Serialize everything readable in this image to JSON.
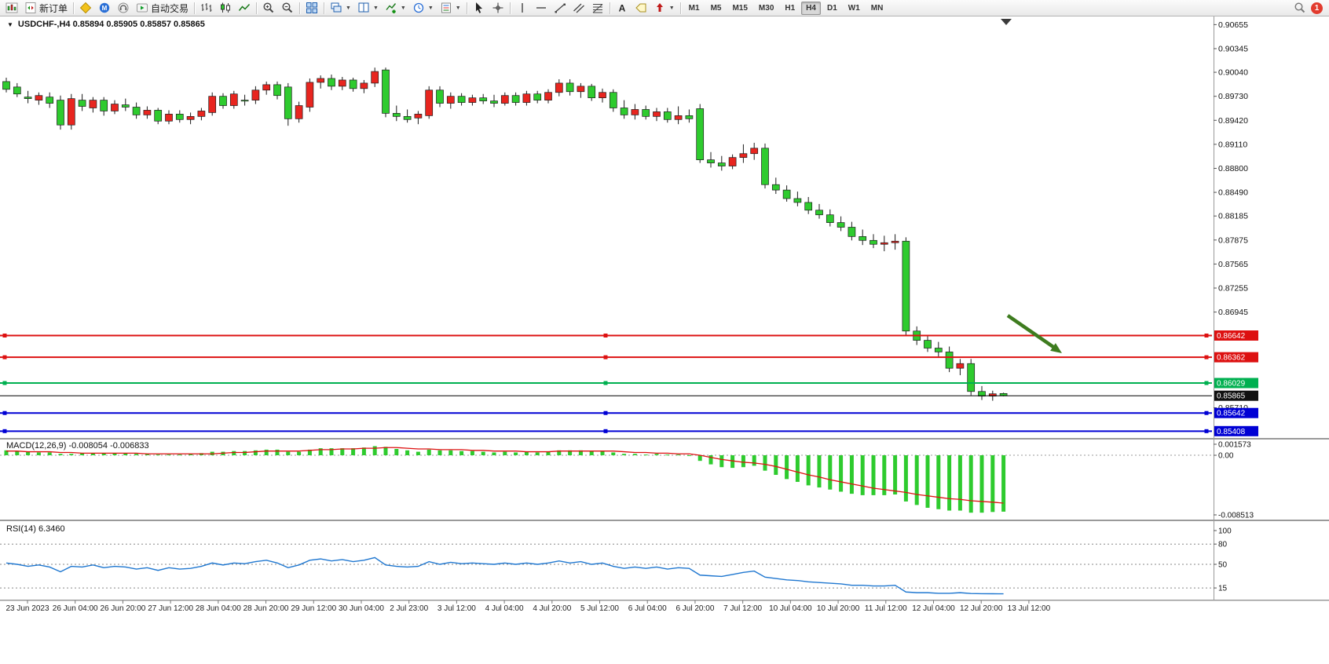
{
  "toolbar": {
    "new_order_label": "新订单",
    "autotrading_label": "自动交易",
    "timeframes": [
      "M1",
      "M5",
      "M15",
      "M30",
      "H1",
      "H4",
      "D1",
      "W1",
      "MN"
    ],
    "active_timeframe": "H4",
    "notification_count": "1",
    "icons": [
      "new-chart",
      "new-order",
      "metaeditor",
      "mql5-community",
      "support",
      "autotrading",
      "bar-chart",
      "candlestick-chart",
      "line-chart",
      "zoom-in",
      "zoom-out",
      "tile-windows",
      "cascade-windows",
      "tile-vertical",
      "add-indicator",
      "periods-clock",
      "templates",
      "cursor",
      "crosshair",
      "vertical-line",
      "horizontal-line",
      "trendline",
      "channel",
      "fibonacci",
      "text",
      "text-label",
      "arrows",
      "search"
    ]
  },
  "chart": {
    "header_text": "USDCHF-,H4  0.85894 0.85905 0.85857 0.85865",
    "symbol": "USDCHF-",
    "period": "H4",
    "open": "0.85894",
    "high": "0.85905",
    "low": "0.85857",
    "close": "0.85865"
  },
  "macd": {
    "label": "MACD(12,26,9) -0.008054 -0.006833",
    "axis": [
      "0.001573",
      "0.00",
      "-0.008513"
    ]
  },
  "rsi": {
    "label": "RSI(14) 6.3460",
    "axis": [
      "100",
      "80",
      "50",
      "15"
    ]
  },
  "price_axis": {
    "ticks": [
      "0.90655",
      "0.90345",
      "0.90040",
      "0.89730",
      "0.89420",
      "0.89110",
      "0.88800",
      "0.88490",
      "0.88185",
      "0.87875",
      "0.87565",
      "0.87255",
      "0.86945",
      "0.85710"
    ]
  },
  "time_axis": [
    "23 Jun 2023",
    "26 Jun 04:00",
    "26 Jun 20:00",
    "27 Jun 12:00",
    "28 Jun 04:00",
    "28 Jun 20:00",
    "29 Jun 12:00",
    "30 Jun 04:00",
    "2 Jul 23:00",
    "3 Jul 12:00",
    "4 Jul 04:00",
    "4 Jul 20:00",
    "5 Jul 12:00",
    "6 Jul 04:00",
    "6 Jul 20:00",
    "7 Jul 12:00",
    "10 Jul 04:00",
    "10 Jul 20:00",
    "11 Jul 12:00",
    "12 Jul 04:00",
    "12 Jul 20:00",
    "13 Jul 12:00"
  ],
  "chart_data": {
    "type": "candlestick",
    "symbol": "USDCHF",
    "timeframe": "H4",
    "colors": {
      "bull": "#e8251f",
      "bear": "#2ecb2e",
      "wick": "#1c1c1c",
      "macd_hist": "#2ecb2e",
      "macd_signal": "#dd1111",
      "rsi_line": "#1f77d0",
      "arrow": "#3e7c1f"
    },
    "candles": [
      [
        0.8992,
        0.8997,
        0.8978,
        0.8982
      ],
      [
        0.8985,
        0.899,
        0.8972,
        0.8976
      ],
      [
        0.8972,
        0.898,
        0.8964,
        0.897
      ],
      [
        0.8968,
        0.8978,
        0.8962,
        0.8974
      ],
      [
        0.8972,
        0.8978,
        0.8958,
        0.8964
      ],
      [
        0.8968,
        0.8974,
        0.893,
        0.8936
      ],
      [
        0.8936,
        0.8976,
        0.893,
        0.897
      ],
      [
        0.8968,
        0.8976,
        0.8954,
        0.896
      ],
      [
        0.8958,
        0.8972,
        0.8952,
        0.8968
      ],
      [
        0.8968,
        0.8972,
        0.8948,
        0.8954
      ],
      [
        0.8954,
        0.8968,
        0.895,
        0.8963
      ],
      [
        0.8962,
        0.897,
        0.8954,
        0.8959
      ],
      [
        0.8959,
        0.8965,
        0.8944,
        0.8949
      ],
      [
        0.8949,
        0.896,
        0.8944,
        0.8955
      ],
      [
        0.8955,
        0.8958,
        0.8937,
        0.8941
      ],
      [
        0.8941,
        0.8955,
        0.8937,
        0.895
      ],
      [
        0.895,
        0.8955,
        0.8939,
        0.8943
      ],
      [
        0.8943,
        0.8952,
        0.8937,
        0.8947
      ],
      [
        0.8947,
        0.8958,
        0.8942,
        0.8954
      ],
      [
        0.8952,
        0.8978,
        0.8948,
        0.8973
      ],
      [
        0.8973,
        0.8977,
        0.8957,
        0.8961
      ],
      [
        0.8961,
        0.898,
        0.8957,
        0.8976
      ],
      [
        0.8968,
        0.8975,
        0.8961,
        0.8968
      ],
      [
        0.8968,
        0.8986,
        0.8963,
        0.8981
      ],
      [
        0.8981,
        0.8992,
        0.8975,
        0.8988
      ],
      [
        0.8988,
        0.8992,
        0.8969,
        0.8974
      ],
      [
        0.8985,
        0.899,
        0.8935,
        0.8944
      ],
      [
        0.8944,
        0.8966,
        0.8939,
        0.8961
      ],
      [
        0.8959,
        0.8996,
        0.8953,
        0.8991
      ],
      [
        0.8991,
        0.9,
        0.8983,
        0.8996
      ],
      [
        0.8996,
        0.9001,
        0.8981,
        0.8986
      ],
      [
        0.8986,
        0.8998,
        0.8981,
        0.8994
      ],
      [
        0.8994,
        0.8997,
        0.8979,
        0.8983
      ],
      [
        0.8983,
        0.8994,
        0.8977,
        0.899
      ],
      [
        0.899,
        0.901,
        0.8985,
        0.9005
      ],
      [
        0.9007,
        0.901,
        0.8946,
        0.8951
      ],
      [
        0.8951,
        0.8961,
        0.8941,
        0.8947
      ],
      [
        0.8947,
        0.8956,
        0.8939,
        0.8943
      ],
      [
        0.8945,
        0.8954,
        0.8937,
        0.895
      ],
      [
        0.8948,
        0.8986,
        0.8944,
        0.8981
      ],
      [
        0.8981,
        0.8986,
        0.8959,
        0.8964
      ],
      [
        0.8964,
        0.8978,
        0.8957,
        0.8973
      ],
      [
        0.8973,
        0.8977,
        0.8961,
        0.8965
      ],
      [
        0.8965,
        0.8975,
        0.8961,
        0.8971
      ],
      [
        0.8971,
        0.8976,
        0.8963,
        0.8967
      ],
      [
        0.8967,
        0.8975,
        0.8959,
        0.8964
      ],
      [
        0.8964,
        0.8978,
        0.8961,
        0.8974
      ],
      [
        0.8974,
        0.8978,
        0.8961,
        0.8965
      ],
      [
        0.8965,
        0.898,
        0.8961,
        0.8976
      ],
      [
        0.8976,
        0.898,
        0.8964,
        0.8968
      ],
      [
        0.8968,
        0.8982,
        0.8964,
        0.8978
      ],
      [
        0.8978,
        0.8995,
        0.8973,
        0.899
      ],
      [
        0.899,
        0.8995,
        0.8974,
        0.8979
      ],
      [
        0.8979,
        0.899,
        0.8971,
        0.8986
      ],
      [
        0.8986,
        0.8989,
        0.8967,
        0.8971
      ],
      [
        0.8971,
        0.8983,
        0.8965,
        0.8978
      ],
      [
        0.8978,
        0.8982,
        0.8953,
        0.8958
      ],
      [
        0.8958,
        0.8968,
        0.8944,
        0.8949
      ],
      [
        0.8949,
        0.8963,
        0.8943,
        0.8956
      ],
      [
        0.8956,
        0.8961,
        0.8943,
        0.8947
      ],
      [
        0.8947,
        0.8958,
        0.8941,
        0.8953
      ],
      [
        0.8953,
        0.8958,
        0.8939,
        0.8943
      ],
      [
        0.8943,
        0.896,
        0.8937,
        0.8948
      ],
      [
        0.8948,
        0.8956,
        0.8939,
        0.8944
      ],
      [
        0.8957,
        0.8963,
        0.8887,
        0.8891
      ],
      [
        0.8891,
        0.8901,
        0.8881,
        0.8887
      ],
      [
        0.8887,
        0.8896,
        0.8877,
        0.8883
      ],
      [
        0.8883,
        0.8898,
        0.8879,
        0.8894
      ],
      [
        0.8894,
        0.8911,
        0.8887,
        0.8899
      ],
      [
        0.8899,
        0.8913,
        0.8891,
        0.8906
      ],
      [
        0.8906,
        0.8912,
        0.8854,
        0.8859
      ],
      [
        0.8859,
        0.8868,
        0.8847,
        0.8852
      ],
      [
        0.8852,
        0.8858,
        0.8837,
        0.8841
      ],
      [
        0.8841,
        0.885,
        0.8831,
        0.8836
      ],
      [
        0.8836,
        0.8843,
        0.8821,
        0.8826
      ],
      [
        0.8826,
        0.8834,
        0.8815,
        0.882
      ],
      [
        0.882,
        0.8827,
        0.8805,
        0.881
      ],
      [
        0.881,
        0.8818,
        0.8799,
        0.8804
      ],
      [
        0.8804,
        0.8811,
        0.8787,
        0.8792
      ],
      [
        0.8792,
        0.8801,
        0.8781,
        0.8787
      ],
      [
        0.8787,
        0.8795,
        0.8777,
        0.8782
      ],
      [
        0.8782,
        0.8793,
        0.8773,
        0.8784
      ],
      [
        0.8784,
        0.8795,
        0.8775,
        0.8786
      ],
      [
        0.8786,
        0.8791,
        0.8664,
        0.867
      ],
      [
        0.867,
        0.8676,
        0.8652,
        0.8658
      ],
      [
        0.8658,
        0.8664,
        0.8643,
        0.8648
      ],
      [
        0.8648,
        0.8656,
        0.8637,
        0.8643
      ],
      [
        0.8643,
        0.865,
        0.8617,
        0.8622
      ],
      [
        0.8622,
        0.8634,
        0.8613,
        0.8628
      ],
      [
        0.8628,
        0.8634,
        0.8587,
        0.8592
      ],
      [
        0.8592,
        0.8599,
        0.8581,
        0.8586
      ],
      [
        0.8586,
        0.8593,
        0.858,
        0.8589
      ],
      [
        0.85894,
        0.85905,
        0.85857,
        0.85865
      ]
    ],
    "hlines": [
      {
        "name": "red-line-1",
        "price": 0.86642,
        "label": "0.86642",
        "color": "#dd1111",
        "width": 2,
        "handles": true
      },
      {
        "name": "red-line-2",
        "price": 0.86362,
        "label": "0.86362",
        "color": "#dd1111",
        "width": 2,
        "handles": true
      },
      {
        "name": "green-line",
        "price": 0.86029,
        "label": "0.86029",
        "color": "#00b050",
        "width": 2,
        "handles": true
      },
      {
        "name": "bid-line",
        "price": 0.85865,
        "label": "0.85865",
        "color": "#000000",
        "width": 1,
        "handles": false,
        "label_bg": "#111111"
      },
      {
        "name": "blue-line-1",
        "price": 0.85642,
        "label": "0.85642",
        "color": "#0000d4",
        "width": 2,
        "handles": true
      },
      {
        "name": "blue-line-2",
        "price": 0.85408,
        "label": "0.85408",
        "color": "#0000d4",
        "width": 2,
        "handles": true
      }
    ],
    "macd": {
      "params": "12,26,9",
      "main_value": -0.008054,
      "signal_value": -0.006833,
      "range": [
        0.001573,
        -0.008513
      ],
      "histogram": [
        0.0007,
        0.0006,
        0.0005,
        0.0004,
        0.0004,
        0.0002,
        0.0002,
        0.0003,
        0.0003,
        0.0003,
        0.0003,
        0.0003,
        0.0002,
        0.0002,
        0.0001,
        0.0001,
        0.0001,
        0.0002,
        0.0003,
        0.0005,
        0.0005,
        0.0006,
        0.0006,
        0.0007,
        0.0008,
        0.0008,
        0.0005,
        0.0005,
        0.0008,
        0.001,
        0.001,
        0.001,
        0.001,
        0.0011,
        0.0013,
        0.0012,
        0.0009,
        0.0007,
        0.0005,
        0.0008,
        0.0007,
        0.0007,
        0.0006,
        0.0006,
        0.0005,
        0.0004,
        0.0005,
        0.0004,
        0.0005,
        0.0004,
        0.0005,
        0.0007,
        0.0007,
        0.0007,
        0.0006,
        0.0006,
        0.0004,
        0.0002,
        0.0002,
        0.0001,
        0.0002,
        0.0001,
        0.0001,
        0.0,
        -0.0008,
        -0.0013,
        -0.0017,
        -0.0018,
        -0.0017,
        -0.0015,
        -0.0022,
        -0.0028,
        -0.0034,
        -0.0038,
        -0.0043,
        -0.0046,
        -0.0049,
        -0.0052,
        -0.0055,
        -0.0057,
        -0.0057,
        -0.0057,
        -0.0056,
        -0.0066,
        -0.0071,
        -0.0075,
        -0.0077,
        -0.0079,
        -0.0079,
        -0.0082,
        -0.0082,
        -0.0081,
        -0.008054
      ],
      "signal": [
        0.0006,
        0.0006,
        0.0005,
        0.0005,
        0.0005,
        0.0004,
        0.0004,
        0.0003,
        0.0003,
        0.0003,
        0.0003,
        0.0003,
        0.0003,
        0.0002,
        0.0002,
        0.0002,
        0.0002,
        0.0002,
        0.0002,
        0.0002,
        0.0003,
        0.0004,
        0.0004,
        0.0005,
        0.0006,
        0.0006,
        0.0006,
        0.0006,
        0.0007,
        0.0008,
        0.0008,
        0.0009,
        0.0009,
        0.001,
        0.001,
        0.0011,
        0.0011,
        0.001,
        0.0009,
        0.0009,
        0.0008,
        0.0008,
        0.0008,
        0.0007,
        0.0007,
        0.0006,
        0.0006,
        0.0006,
        0.0005,
        0.0005,
        0.0005,
        0.0006,
        0.0006,
        0.0006,
        0.0006,
        0.0006,
        0.0006,
        0.0005,
        0.0004,
        0.0004,
        0.0003,
        0.0003,
        0.0002,
        0.0002,
        0.0,
        -0.0003,
        -0.0006,
        -0.0008,
        -0.001,
        -0.0011,
        -0.0013,
        -0.0016,
        -0.002,
        -0.0024,
        -0.0028,
        -0.0031,
        -0.0035,
        -0.0038,
        -0.0041,
        -0.0044,
        -0.0047,
        -0.0049,
        -0.0051,
        -0.0053,
        -0.0056,
        -0.0058,
        -0.006,
        -0.0062,
        -0.0063,
        -0.0065,
        -0.0066,
        -0.0067,
        -0.006833
      ]
    },
    "rsi": {
      "period": 14,
      "current": 6.346,
      "levels": [
        80,
        50,
        15
      ],
      "values": [
        52,
        50,
        47,
        49,
        46,
        39,
        47,
        46,
        49,
        45,
        47,
        46,
        43,
        45,
        41,
        45,
        43,
        44,
        47,
        52,
        49,
        52,
        51,
        54,
        56,
        52,
        45,
        49,
        56,
        58,
        55,
        57,
        54,
        56,
        60,
        49,
        47,
        46,
        47,
        54,
        50,
        53,
        51,
        52,
        51,
        50,
        52,
        50,
        52,
        50,
        52,
        55,
        52,
        54,
        50,
        52,
        47,
        44,
        46,
        44,
        46,
        43,
        45,
        44,
        34,
        33,
        32,
        35,
        38,
        40,
        31,
        29,
        27,
        26,
        24,
        23,
        22,
        21,
        19,
        19,
        18,
        18,
        19,
        9,
        8,
        8,
        7,
        7,
        8,
        6.8,
        6.5,
        6.4,
        6.346
      ]
    },
    "annotations": [
      {
        "type": "arrow",
        "direction": "down-right",
        "color": "#3e7c1f"
      }
    ]
  }
}
